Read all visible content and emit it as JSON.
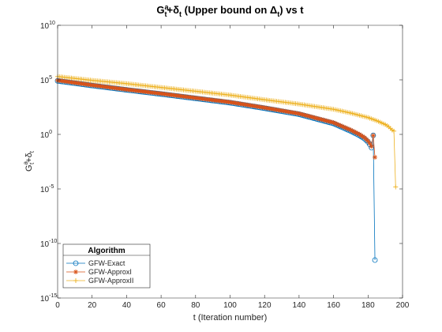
{
  "chart_data": {
    "type": "line",
    "title": {
      "base": "G",
      "sup": "a",
      "sub": "t",
      "plus": "+δ",
      "sub2": "t",
      "rest": " (Upper bound on Δ",
      "sub3": "t",
      "tail": ") vs t"
    },
    "xlabel": "t (Iteration number)",
    "ylabel": {
      "base": "G",
      "sup": "a",
      "sub": "t",
      "plus": "+δ",
      "sub2": "t"
    },
    "xlim": [
      0,
      200
    ],
    "ylim": [
      1e-15,
      10000000000.0
    ],
    "yscale": "log",
    "x_ticks": [
      "0",
      "20",
      "40",
      "60",
      "80",
      "100",
      "120",
      "140",
      "160",
      "180",
      "200"
    ],
    "y_ticks": [
      {
        "base": "10",
        "exp": "10"
      },
      {
        "base": "10",
        "exp": "5"
      },
      {
        "base": "10",
        "exp": "0"
      },
      {
        "base": "10",
        "exp": "-5"
      },
      {
        "base": "10",
        "exp": "-10"
      },
      {
        "base": "10",
        "exp": "-15"
      }
    ],
    "legend": {
      "title": "Algorithm",
      "position": "bottom-left"
    },
    "grid": false,
    "series": [
      {
        "name": "GFW-Exact",
        "color": "#0072BD",
        "marker": "circle",
        "x": [
          0,
          20,
          40,
          60,
          80,
          100,
          120,
          140,
          160,
          170,
          175,
          178,
          180,
          181,
          182,
          183,
          184
        ],
        "y": [
          80000,
          30000,
          12000,
          5000,
          2000,
          800,
          250,
          70,
          10,
          2,
          0.8,
          0.4,
          0.2,
          0.12,
          0.06,
          0.8,
          3e-12
        ]
      },
      {
        "name": "GFW-ApproxI",
        "color": "#D95319",
        "marker": "asterisk",
        "x": [
          0,
          20,
          40,
          60,
          80,
          100,
          120,
          140,
          160,
          170,
          175,
          178,
          180,
          181,
          182,
          183,
          184
        ],
        "y": [
          90000,
          33000,
          13000,
          5500,
          2200,
          900,
          280,
          80,
          12,
          2.5,
          1.0,
          0.5,
          0.25,
          0.15,
          0.08,
          0.8,
          0.008
        ]
      },
      {
        "name": "GFW-ApproxII",
        "color": "#EDB120",
        "marker": "plus",
        "x": [
          0,
          20,
          40,
          60,
          80,
          100,
          120,
          140,
          160,
          170,
          180,
          185,
          190,
          192,
          194,
          195,
          196
        ],
        "y": [
          200000,
          90000,
          45000,
          20000,
          9000,
          4000,
          1500,
          600,
          200,
          90,
          35,
          18,
          8,
          5,
          2.5,
          2,
          1.5e-05
        ]
      }
    ]
  }
}
